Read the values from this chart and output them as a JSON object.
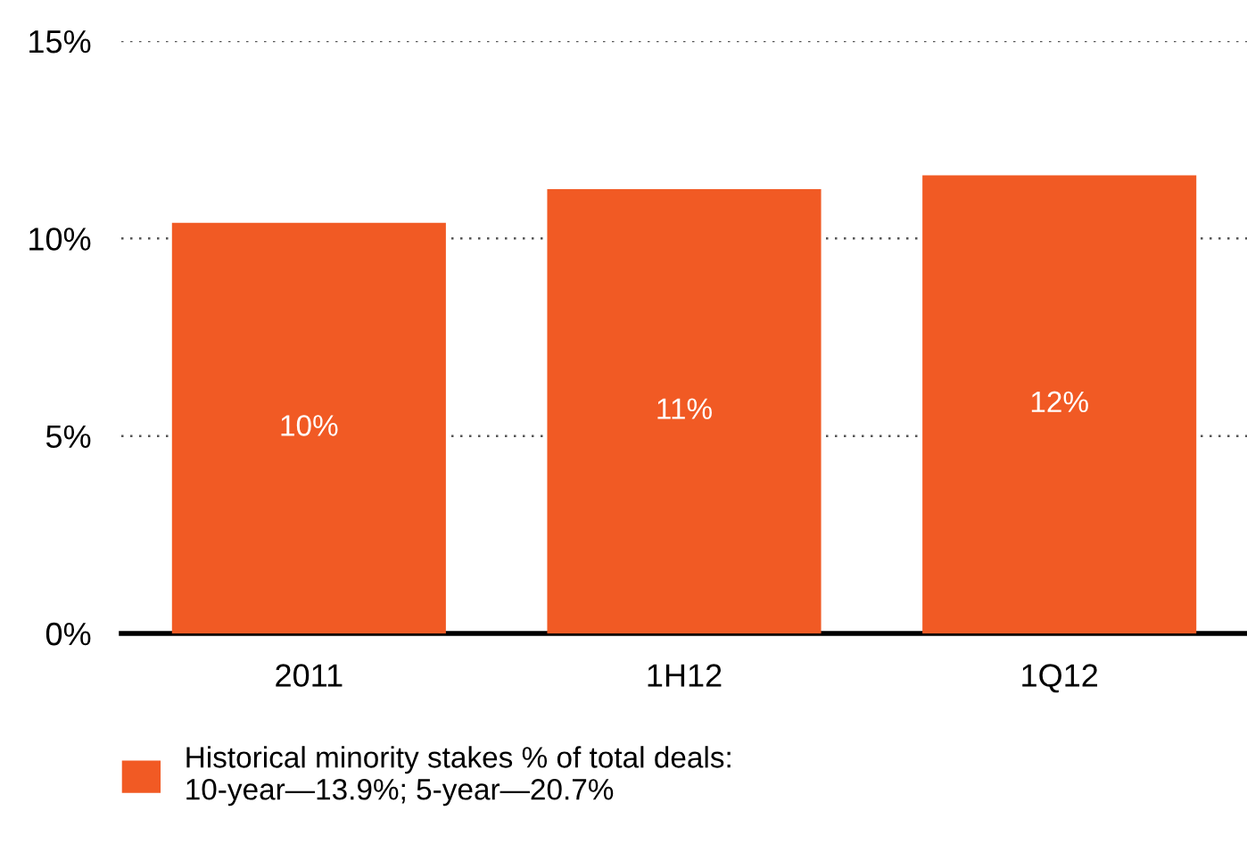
{
  "chart_data": {
    "type": "bar",
    "categories": [
      "2011",
      "1H12",
      "1Q12"
    ],
    "series": [
      {
        "name": "Historical minority stakes % of total deals:\n10-year—13.9%; 5-year—20.7%",
        "color": "#f15a24",
        "values": [
          10.4,
          11.25,
          11.6
        ],
        "value_labels": [
          "10%",
          "11%",
          "12%"
        ]
      }
    ],
    "ylim": [
      0,
      15
    ],
    "yticks": [
      {
        "value": 0,
        "label": "0%"
      },
      {
        "value": 5,
        "label": "5%"
      },
      {
        "value": 10,
        "label": "10%"
      },
      {
        "value": 15,
        "label": "15%"
      }
    ],
    "grid": "y",
    "legend": "bottom left"
  }
}
